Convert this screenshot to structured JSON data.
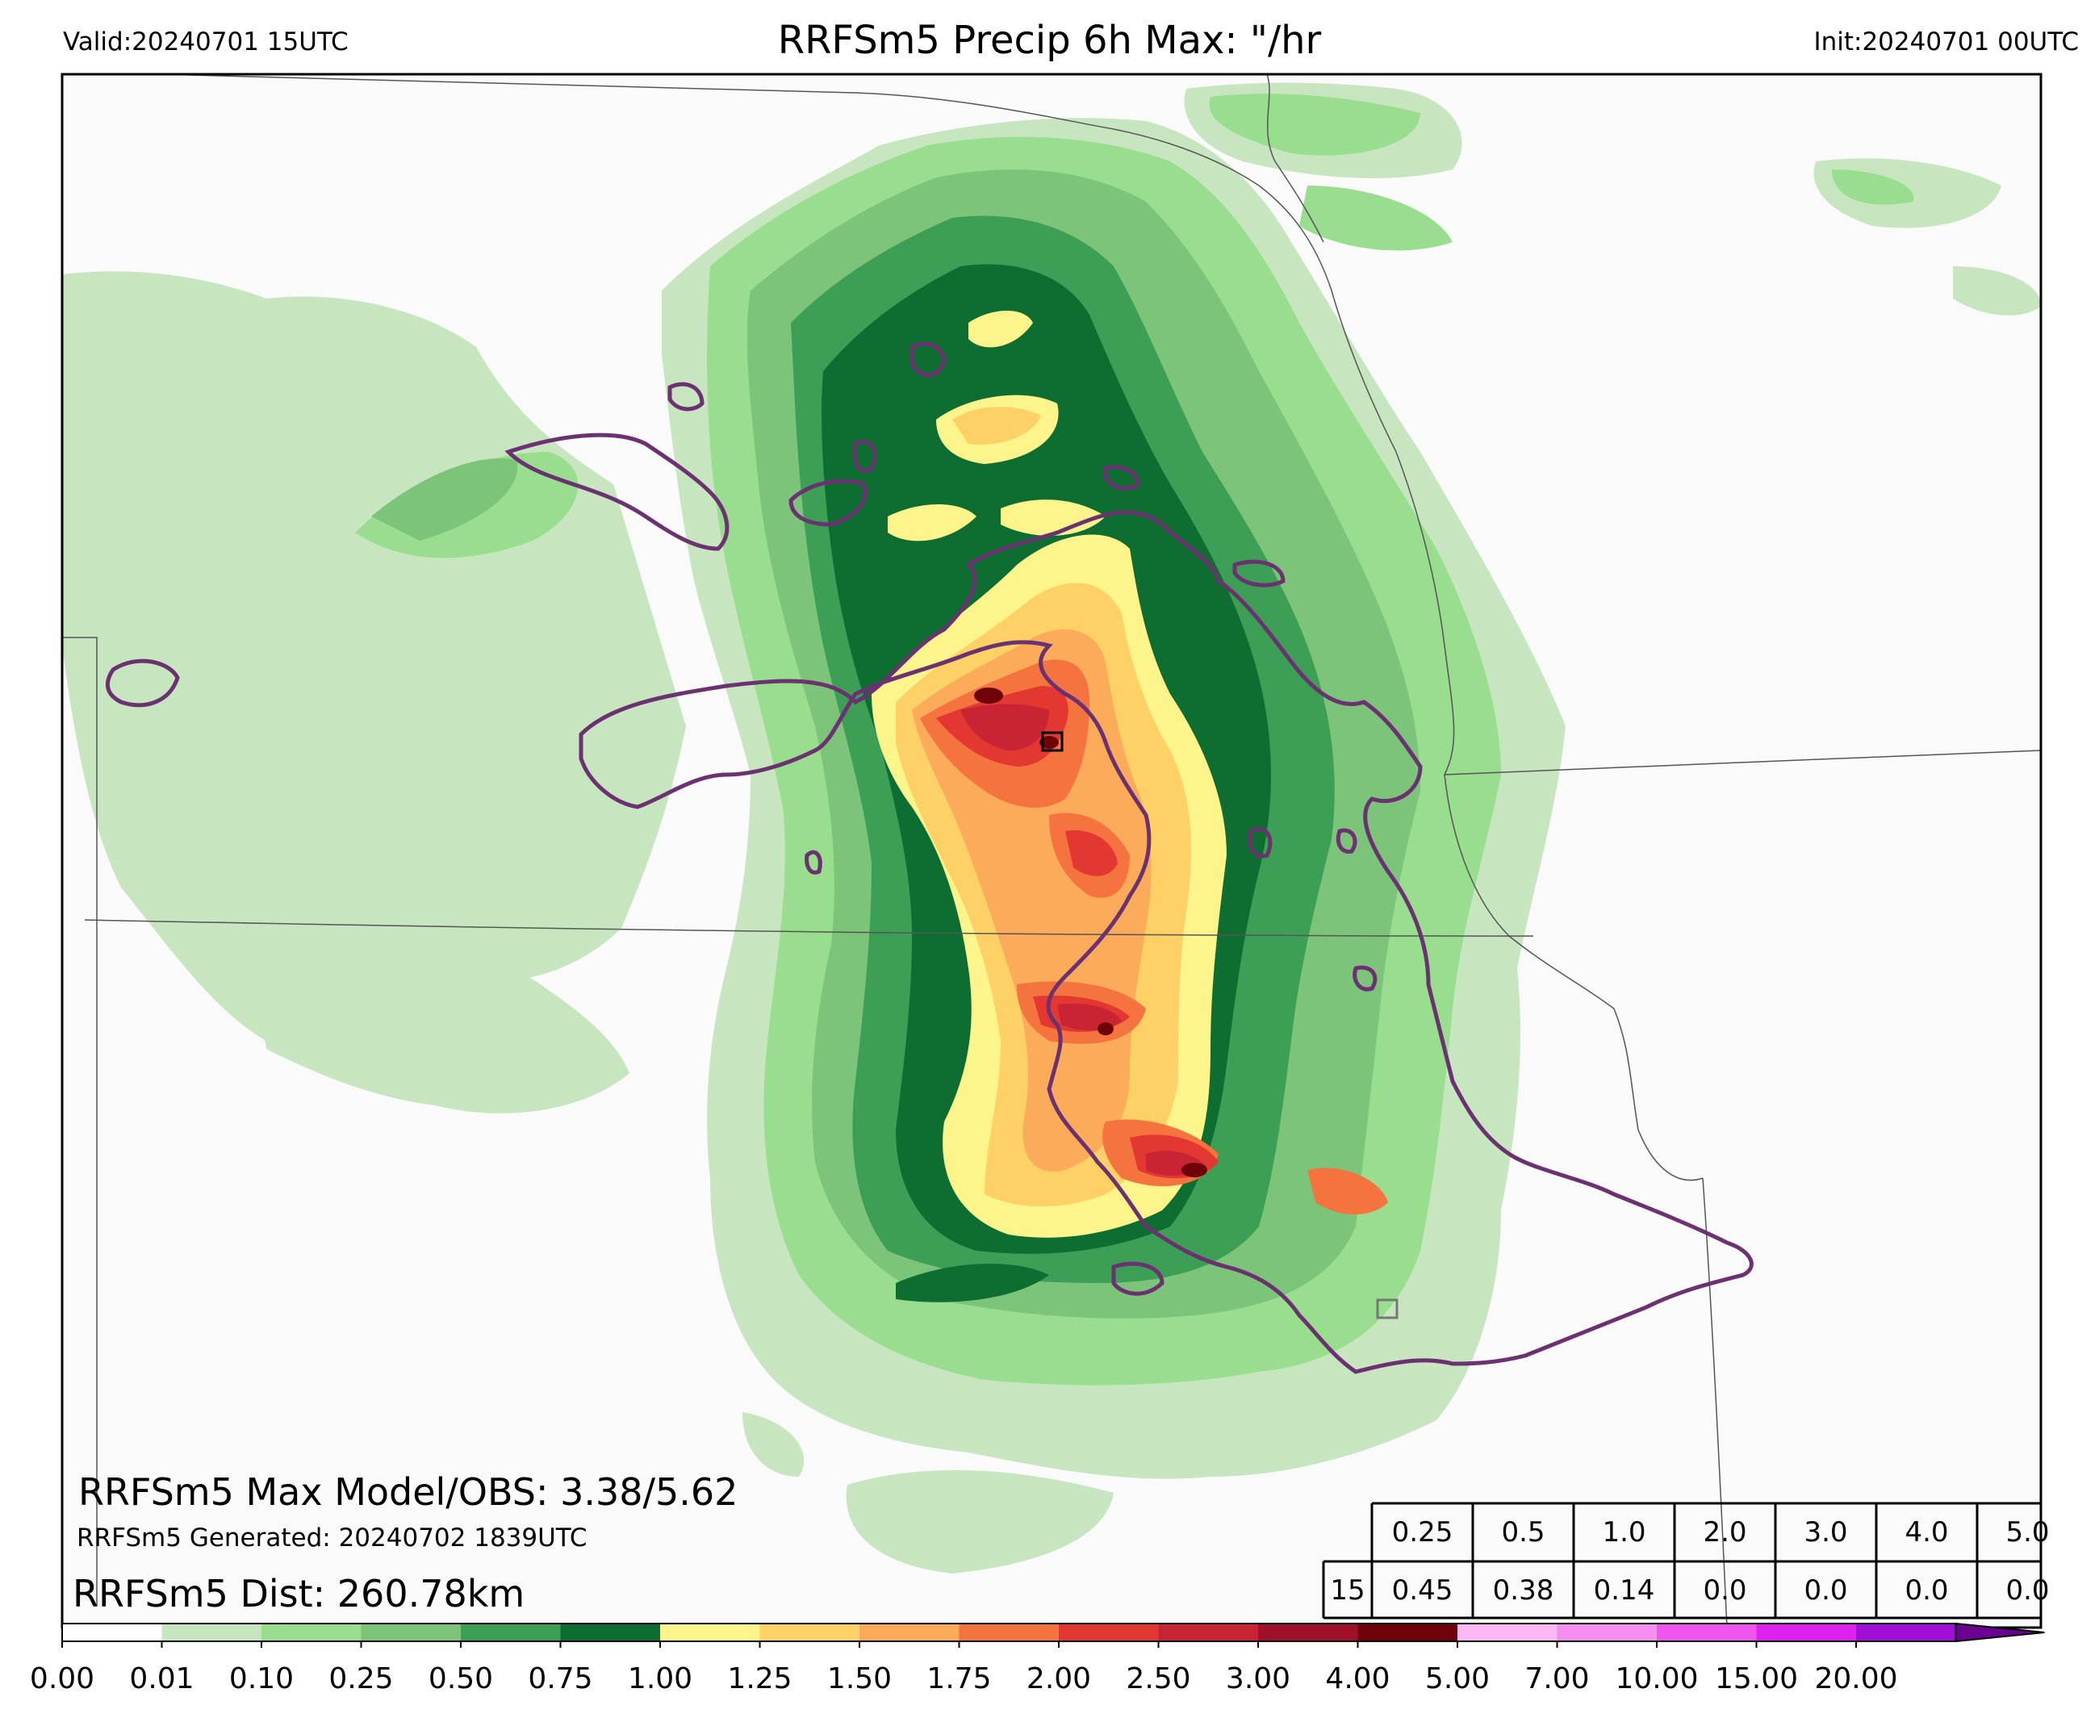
{
  "header": {
    "valid": "Valid:20240701 15UTC",
    "title": "RRFSm5 Precip 6h Max: \"/hr",
    "init": "Init:20240701 00UTC"
  },
  "annotations": {
    "max_line": "RRFSm5 Max Model/OBS: 3.38/5.62",
    "generated_line": "RRFSm5 Generated: 20240702 1839UTC",
    "dist_line": "RRFSm5 Dist: 260.78km"
  },
  "threshold_table": {
    "headers": [
      "0.25",
      "0.5",
      "1.0",
      "2.0",
      "3.0",
      "4.0",
      "5.0"
    ],
    "row_label": "15",
    "values": [
      "0.45",
      "0.38",
      "0.14",
      "0.0",
      "0.0",
      "0.0",
      "0.0"
    ]
  },
  "colorbar": {
    "labels": [
      "0.00",
      "0.01",
      "0.10",
      "0.25",
      "0.50",
      "0.75",
      "1.00",
      "1.25",
      "1.50",
      "1.75",
      "2.00",
      "2.50",
      "3.00",
      "4.00",
      "5.00",
      "7.00",
      "10.00",
      "15.00",
      "20.00"
    ],
    "colors": [
      "#ffffff",
      "#c7e6c0",
      "#99dd8e",
      "#7cc47a",
      "#3d9e55",
      "#0e6e32",
      "#fdf58b",
      "#fdd166",
      "#fbab5a",
      "#f5733e",
      "#e33831",
      "#c82434",
      "#a0102a",
      "#6d0309",
      "#fdb7f5",
      "#f68ef0",
      "#ef56ee",
      "#de20f0",
      "#a00fd8"
    ],
    "extend_color": "#6a0090"
  },
  "map": {
    "background": "#fafafa",
    "boundary_color": "#6b3170",
    "state_line_color": "#555555"
  }
}
